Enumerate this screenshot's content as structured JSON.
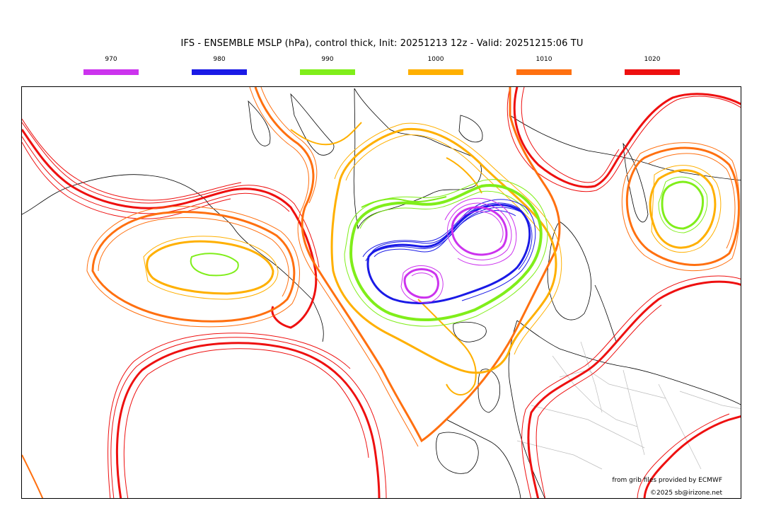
{
  "title": "IFS - ENSEMBLE MSLP (hPa), control thick, Init: 20251213 12z - Valid: 20251215:06 TU",
  "legend": [
    {
      "label": "970",
      "color": "#cc33ee"
    },
    {
      "label": "980",
      "color": "#1a1ae6"
    },
    {
      "label": "990",
      "color": "#80ee1a"
    },
    {
      "label": "1000",
      "color": "#ffb000"
    },
    {
      "label": "1010",
      "color": "#ff7010"
    },
    {
      "label": "1020",
      "color": "#ee1010"
    }
  ],
  "credits": {
    "source": "from grib files provided by ECMWF",
    "copyright": "©2025 sb@irizone.net"
  },
  "contour_colors": {
    "c970": "#cc33ee",
    "c980": "#1a1ae6",
    "c990": "#80ee1a",
    "c1000": "#ffb000",
    "c1010": "#ff7010",
    "c1020": "#ee1010",
    "coast": "#000000",
    "borders": "#bbbbbb"
  }
}
